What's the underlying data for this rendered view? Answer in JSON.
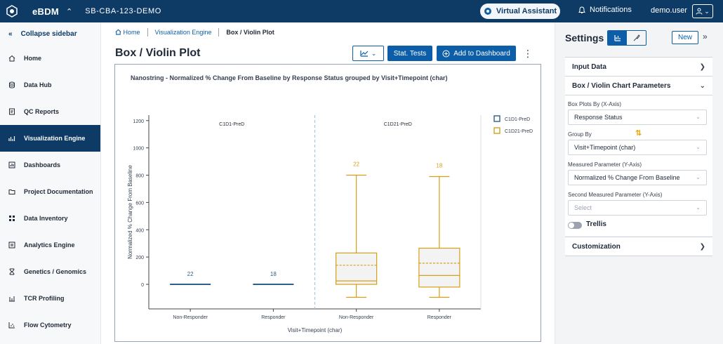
{
  "header": {
    "app_name": "eBDM",
    "project": "SB-CBA-123-DEMO",
    "virtual_assistant": "Virtual Assistant",
    "notifications": "Notifications",
    "user": "demo.user"
  },
  "sidebar": {
    "collapse_label": "Collapse sidebar",
    "items": [
      {
        "label": "Home",
        "icon": "home-icon"
      },
      {
        "label": "Data Hub",
        "icon": "database-icon"
      },
      {
        "label": "QC Reports",
        "icon": "report-icon"
      },
      {
        "label": "Visualization Engine",
        "icon": "chart-icon",
        "active": true
      },
      {
        "label": "Dashboards",
        "icon": "dashboard-icon"
      },
      {
        "label": "Project Documentation",
        "icon": "folder-icon"
      },
      {
        "label": "Data Inventory",
        "icon": "grid-icon"
      },
      {
        "label": "Analytics Engine",
        "icon": "analytics-icon"
      },
      {
        "label": "Genetics / Genomics",
        "icon": "dna-icon"
      },
      {
        "label": "TCR Profiling",
        "icon": "tcr-icon"
      },
      {
        "label": "Flow Cytometry",
        "icon": "flow-icon"
      }
    ]
  },
  "breadcrumb": {
    "home": "Home",
    "section": "Visualization Engine",
    "current": "Box / Violin Plot"
  },
  "page": {
    "title": "Box / Violin Plot",
    "stat_tests": "Stat. Tests",
    "add_dashboard": "Add to Dashboard"
  },
  "settings": {
    "title": "Settings",
    "new_label": "New",
    "input_data": "Input Data",
    "chart_params": "Box / Violin Chart Parameters",
    "box_plots_by_label": "Box Plots By (X-Axis)",
    "box_plots_by_value": "Response Status",
    "group_by_label": "Group By",
    "group_by_value": "Visit+Timepoint (char)",
    "measured_label": "Measured Parameter (Y-Axis)",
    "measured_value": "Normalized % Change From Baseline",
    "second_measured_label": "Second Measured Parameter (Y-Axis)",
    "second_measured_placeholder": "Select",
    "trellis": "Trellis",
    "customization": "Customization"
  },
  "chart_data": {
    "type": "box",
    "title": "Nanostring - Normalized % Change From Baseline by Response Status grouped by Visit+Timepoint (char)",
    "xlabel": "Visit+Timepoint (char)",
    "ylabel": "Normalized % Change From Baseline",
    "ylim": [
      -180,
      1240
    ],
    "yticks": [
      0,
      200,
      400,
      600,
      800,
      1000,
      1200
    ],
    "legend_position": "top-right",
    "groups": [
      "C1D1-PreD",
      "C1D21-PreD"
    ],
    "series": [
      {
        "name": "C1D1-PreD",
        "color": "#2e5f8a",
        "boxes": [
          {
            "category": "Non-Responder",
            "n": "22",
            "min": 0,
            "q1": 0,
            "median": 0,
            "mean": 0,
            "q3": 0,
            "max": 0
          },
          {
            "category": "Responder",
            "n": "18",
            "min": 0,
            "q1": 0,
            "median": 0,
            "mean": 0,
            "q3": 0,
            "max": 0
          }
        ]
      },
      {
        "name": "C1D21-PreD",
        "color": "#d4a017",
        "boxes": [
          {
            "category": "Non-Responder",
            "n": "22",
            "min": -95,
            "q1": 0,
            "median": 25,
            "mean": 140,
            "q3": 230,
            "max": 800
          },
          {
            "category": "Responder",
            "n": "18",
            "min": -95,
            "q1": -20,
            "median": 65,
            "mean": 155,
            "q3": 265,
            "max": 790
          }
        ]
      }
    ]
  }
}
